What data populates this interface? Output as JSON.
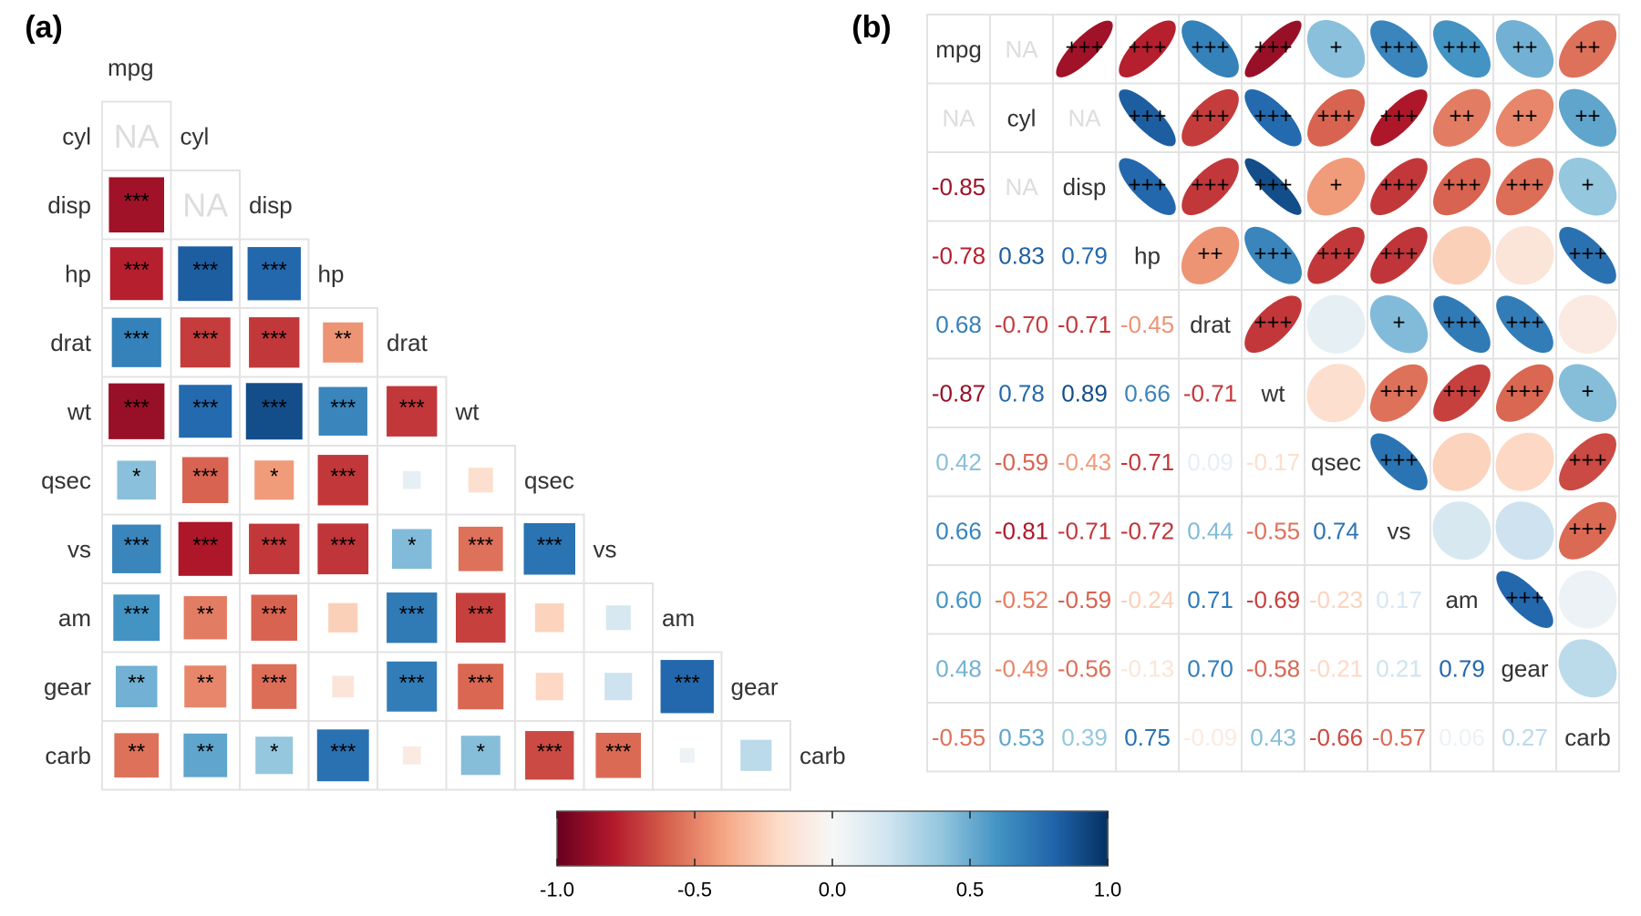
{
  "chart_data": [
    {
      "panel": "(a)",
      "type": "heatmap",
      "subtype": "lower-triangle correlation matrix, square glyphs sized by |r|, significance stars",
      "variables": [
        "mpg",
        "cyl",
        "disp",
        "hp",
        "drat",
        "wt",
        "qsec",
        "vs",
        "am",
        "gear",
        "carb"
      ],
      "na_label": "NA",
      "cells": [
        {
          "row": "cyl",
          "col": "mpg",
          "value": null,
          "sig": ""
        },
        {
          "row": "disp",
          "col": "mpg",
          "value": -0.85,
          "sig": "***"
        },
        {
          "row": "disp",
          "col": "cyl",
          "value": null,
          "sig": ""
        },
        {
          "row": "hp",
          "col": "mpg",
          "value": -0.78,
          "sig": "***"
        },
        {
          "row": "hp",
          "col": "cyl",
          "value": 0.83,
          "sig": "***"
        },
        {
          "row": "hp",
          "col": "disp",
          "value": 0.79,
          "sig": "***"
        },
        {
          "row": "drat",
          "col": "mpg",
          "value": 0.68,
          "sig": "***"
        },
        {
          "row": "drat",
          "col": "cyl",
          "value": -0.7,
          "sig": "***"
        },
        {
          "row": "drat",
          "col": "disp",
          "value": -0.71,
          "sig": "***"
        },
        {
          "row": "drat",
          "col": "hp",
          "value": -0.45,
          "sig": "**"
        },
        {
          "row": "wt",
          "col": "mpg",
          "value": -0.87,
          "sig": "***"
        },
        {
          "row": "wt",
          "col": "cyl",
          "value": 0.78,
          "sig": "***"
        },
        {
          "row": "wt",
          "col": "disp",
          "value": 0.89,
          "sig": "***"
        },
        {
          "row": "wt",
          "col": "hp",
          "value": 0.66,
          "sig": "***"
        },
        {
          "row": "wt",
          "col": "drat",
          "value": -0.71,
          "sig": "***"
        },
        {
          "row": "qsec",
          "col": "mpg",
          "value": 0.42,
          "sig": "*"
        },
        {
          "row": "qsec",
          "col": "cyl",
          "value": -0.59,
          "sig": "***"
        },
        {
          "row": "qsec",
          "col": "disp",
          "value": -0.43,
          "sig": "*"
        },
        {
          "row": "qsec",
          "col": "hp",
          "value": -0.71,
          "sig": "***"
        },
        {
          "row": "qsec",
          "col": "drat",
          "value": 0.09,
          "sig": ""
        },
        {
          "row": "qsec",
          "col": "wt",
          "value": -0.17,
          "sig": ""
        },
        {
          "row": "vs",
          "col": "mpg",
          "value": 0.66,
          "sig": "***"
        },
        {
          "row": "vs",
          "col": "cyl",
          "value": -0.81,
          "sig": "***"
        },
        {
          "row": "vs",
          "col": "disp",
          "value": -0.71,
          "sig": "***"
        },
        {
          "row": "vs",
          "col": "hp",
          "value": -0.72,
          "sig": "***"
        },
        {
          "row": "vs",
          "col": "drat",
          "value": 0.44,
          "sig": "*"
        },
        {
          "row": "vs",
          "col": "wt",
          "value": -0.55,
          "sig": "***"
        },
        {
          "row": "vs",
          "col": "qsec",
          "value": 0.74,
          "sig": "***"
        },
        {
          "row": "am",
          "col": "mpg",
          "value": 0.6,
          "sig": "***"
        },
        {
          "row": "am",
          "col": "cyl",
          "value": -0.52,
          "sig": "**"
        },
        {
          "row": "am",
          "col": "disp",
          "value": -0.59,
          "sig": "***"
        },
        {
          "row": "am",
          "col": "hp",
          "value": -0.24,
          "sig": ""
        },
        {
          "row": "am",
          "col": "drat",
          "value": 0.71,
          "sig": "***"
        },
        {
          "row": "am",
          "col": "wt",
          "value": -0.69,
          "sig": "***"
        },
        {
          "row": "am",
          "col": "qsec",
          "value": -0.23,
          "sig": ""
        },
        {
          "row": "am",
          "col": "vs",
          "value": 0.17,
          "sig": ""
        },
        {
          "row": "gear",
          "col": "mpg",
          "value": 0.48,
          "sig": "**"
        },
        {
          "row": "gear",
          "col": "cyl",
          "value": -0.49,
          "sig": "**"
        },
        {
          "row": "gear",
          "col": "disp",
          "value": -0.56,
          "sig": "***"
        },
        {
          "row": "gear",
          "col": "hp",
          "value": -0.13,
          "sig": ""
        },
        {
          "row": "gear",
          "col": "drat",
          "value": 0.7,
          "sig": "***"
        },
        {
          "row": "gear",
          "col": "wt",
          "value": -0.58,
          "sig": "***"
        },
        {
          "row": "gear",
          "col": "qsec",
          "value": -0.21,
          "sig": ""
        },
        {
          "row": "gear",
          "col": "vs",
          "value": 0.21,
          "sig": ""
        },
        {
          "row": "gear",
          "col": "am",
          "value": 0.79,
          "sig": "***"
        },
        {
          "row": "carb",
          "col": "mpg",
          "value": -0.55,
          "sig": "**"
        },
        {
          "row": "carb",
          "col": "cyl",
          "value": 0.53,
          "sig": "**"
        },
        {
          "row": "carb",
          "col": "disp",
          "value": 0.39,
          "sig": "*"
        },
        {
          "row": "carb",
          "col": "hp",
          "value": 0.75,
          "sig": "***"
        },
        {
          "row": "carb",
          "col": "drat",
          "value": -0.09,
          "sig": ""
        },
        {
          "row": "carb",
          "col": "wt",
          "value": 0.43,
          "sig": "*"
        },
        {
          "row": "carb",
          "col": "qsec",
          "value": -0.66,
          "sig": "***"
        },
        {
          "row": "carb",
          "col": "vs",
          "value": -0.57,
          "sig": "***"
        },
        {
          "row": "carb",
          "col": "am",
          "value": 0.06,
          "sig": ""
        },
        {
          "row": "carb",
          "col": "gear",
          "value": 0.27,
          "sig": ""
        }
      ]
    },
    {
      "panel": "(b)",
      "type": "heatmap",
      "subtype": "mixed correlation matrix: numbers in lower triangle, ellipses with significance pluses in upper triangle, variable names on diagonal",
      "variables": [
        "mpg",
        "cyl",
        "disp",
        "hp",
        "drat",
        "wt",
        "qsec",
        "vs",
        "am",
        "gear",
        "carb"
      ],
      "na_label": "NA",
      "lower_labels": [
        [
          "NA"
        ],
        [
          "-0.85",
          "NA"
        ],
        [
          "-0.78",
          "0.83",
          "0.79"
        ],
        [
          "0.68",
          "-0.70",
          "-0.71",
          "-0.45"
        ],
        [
          "-0.87",
          "0.78",
          "0.89",
          "0.66",
          "-0.71"
        ],
        [
          "0.42",
          "-0.59",
          "-0.43",
          "-0.71",
          "0.09",
          "-0.17"
        ],
        [
          "0.66",
          "-0.81",
          "-0.71",
          "-0.72",
          "0.44",
          "-0.55",
          "0.74"
        ],
        [
          "0.60",
          "-0.52",
          "-0.59",
          "-0.24",
          "0.71",
          "-0.69",
          "-0.23",
          "0.17"
        ],
        [
          "0.48",
          "-0.49",
          "-0.56",
          "-0.13",
          "0.70",
          "-0.58",
          "-0.21",
          "0.21",
          "0.79"
        ],
        [
          "-0.55",
          "0.53",
          "0.39",
          "0.75",
          "-0.09",
          "0.43",
          "-0.66",
          "-0.57",
          "0.06",
          "0.27"
        ]
      ],
      "upper_sig": [
        [
          "",
          "+++",
          "+++",
          "+++",
          "+++",
          "+",
          "+++",
          "+++",
          "++",
          "++"
        ],
        [
          "",
          "+++",
          "+++",
          "+++",
          "+++",
          "+++",
          "++",
          "++",
          "++"
        ],
        [
          "+++",
          "+++",
          "+++",
          "+",
          "+++",
          "+++",
          "+++",
          "+"
        ],
        [
          "++",
          "+++",
          "+++",
          "+++",
          "",
          "",
          "+++"
        ],
        [
          "+++",
          "",
          "+",
          "+++",
          "+++",
          ""
        ],
        [
          "",
          "+++",
          "+++",
          "+++",
          "+"
        ],
        [
          "+++",
          "",
          "",
          "+++"
        ],
        [
          "",
          "",
          "+++"
        ],
        [
          "+++",
          ""
        ],
        [
          ""
        ]
      ]
    }
  ],
  "colorbar": {
    "min": -1.0,
    "max": 1.0,
    "ticks": [
      -1.0,
      -0.5,
      0.0,
      0.5,
      1.0
    ],
    "tick_labels": [
      "-1.0",
      "-0.5",
      "0.0",
      "0.5",
      "1.0"
    ],
    "palette": [
      "#67001F",
      "#B2182B",
      "#D6604D",
      "#F4A582",
      "#FDDBC7",
      "#F7F7F7",
      "#D1E5F0",
      "#92C5DE",
      "#4393C3",
      "#2166AC",
      "#053061"
    ]
  },
  "panel_labels": [
    "(a)",
    "(b)"
  ],
  "colors": {
    "grid": "#E3E3E3",
    "text": "#333333",
    "na_text": "#DDDDDD",
    "star_text": "#000000"
  }
}
